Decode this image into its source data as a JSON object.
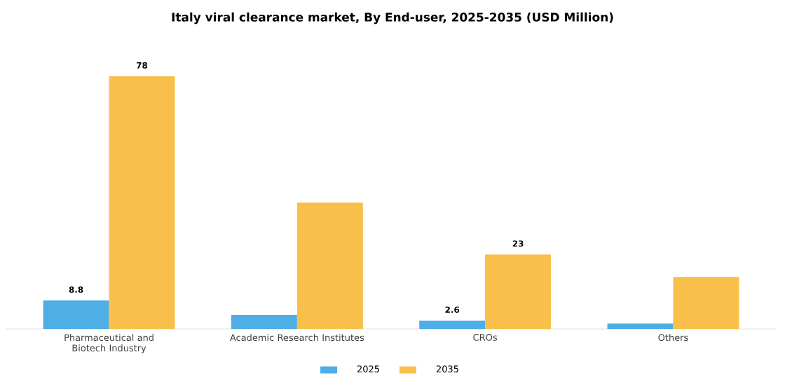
{
  "chart_data": {
    "type": "bar",
    "title": "Italy viral clearance market, By End-user, 2025-2035 (USD Million)",
    "categories": [
      "Pharmaceutical and Biotech Industry",
      "Academic Research Institutes",
      "CROs",
      "Others"
    ],
    "series": [
      {
        "name": "2025",
        "color": "#4eaee5",
        "values": [
          8.8,
          4.3,
          2.6,
          1.7
        ],
        "value_labels": [
          "8.8",
          null,
          "2.6",
          null
        ]
      },
      {
        "name": "2035",
        "color": "#f8c04a",
        "values": [
          78,
          39,
          23,
          16
        ],
        "value_labels": [
          "78",
          null,
          "23",
          null
        ]
      }
    ],
    "legend": "bottom",
    "grid": false
  }
}
